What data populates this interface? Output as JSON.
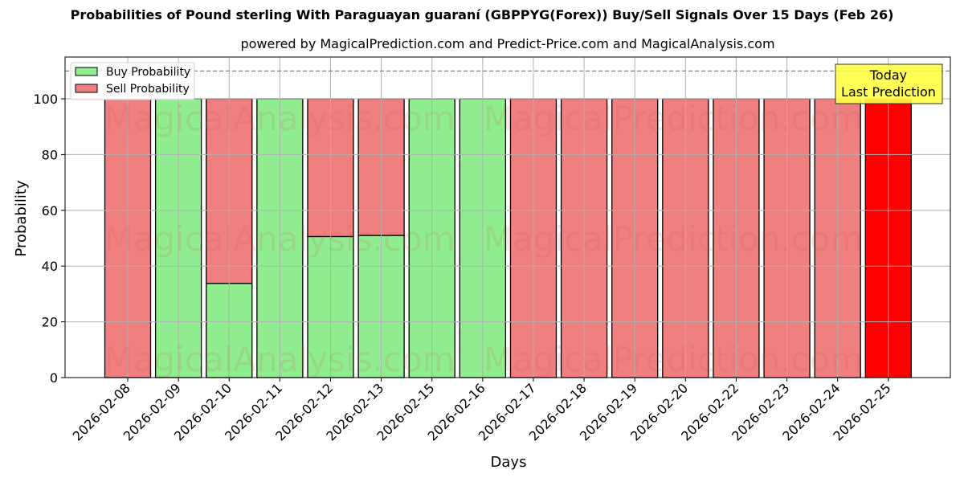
{
  "header": {
    "title": "Probabilities of Pound sterling With Paraguayan guaraní (GBPPYG(Forex)) Buy/Sell Signals Over 15 Days (Feb 26)",
    "subtitle": "powered by MagicalPrediction.com and Predict-Price.com and MagicalAnalysis.com"
  },
  "watermarks": [
    "MagicalAnalysis.com",
    "MagicalPrediction.com"
  ],
  "annotation": {
    "line1": "Today",
    "line2": "Last Prediction"
  },
  "colors": {
    "buy": "#90ee90",
    "sell": "#f08080",
    "today_sell": "#ff0000",
    "annotation_bg": "#ffff44",
    "grid": "#b0b0b0",
    "dashed_line": "#808080"
  },
  "chart_data": {
    "type": "bar",
    "stacked": true,
    "title": "Probabilities of Pound sterling With Paraguayan guaraní (GBPPYG(Forex)) Buy/Sell Signals Over 15 Days (Feb 26)",
    "subtitle": "powered by MagicalPrediction.com and Predict-Price.com and MagicalAnalysis.com",
    "xlabel": "Days",
    "ylabel": "Probability",
    "ylim": [
      0,
      115
    ],
    "yticks": [
      0,
      20,
      40,
      60,
      80,
      100
    ],
    "grid": true,
    "legend_position": "upper left",
    "reference_line": {
      "y": 110,
      "style": "dashed"
    },
    "categories": [
      "2026-02-08",
      "2026-02-09",
      "2026-02-10",
      "2026-02-11",
      "2026-02-12",
      "2026-02-13",
      "2026-02-15",
      "2026-02-16",
      "2026-02-17",
      "2026-02-18",
      "2026-02-19",
      "2026-02-20",
      "2026-02-22",
      "2026-02-23",
      "2026-02-24",
      "2026-02-25"
    ],
    "series": [
      {
        "name": "Buy Probability",
        "values": [
          0,
          100,
          33.8,
          100,
          50.6,
          51.0,
          100,
          100,
          0,
          0,
          0,
          0,
          0,
          0,
          0,
          0
        ]
      },
      {
        "name": "Sell Probability",
        "values": [
          100,
          0,
          66.2,
          0,
          49.4,
          49.0,
          0,
          0,
          100,
          100,
          100,
          100,
          100,
          100,
          100,
          100
        ]
      }
    ],
    "annotations": [
      {
        "text": "Today\nLast Prediction",
        "x": "2026-02-25"
      }
    ],
    "highlight": {
      "category": "2026-02-25",
      "color": "#ff0000"
    }
  }
}
